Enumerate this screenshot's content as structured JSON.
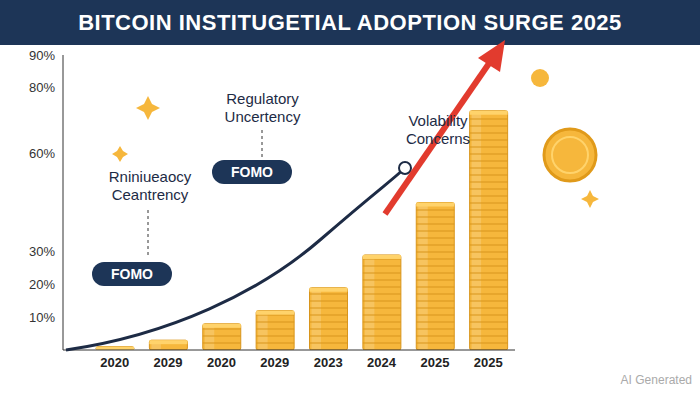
{
  "chart_data": {
    "type": "bar",
    "title": "BITCOIN INSTITUGETIAL ADOPTION SURGE 2025",
    "categories": [
      "2020",
      "2029",
      "2020",
      "2029",
      "2023",
      "2024",
      "2025",
      "2025"
    ],
    "values": [
      1,
      3,
      8,
      12,
      19,
      29,
      45,
      73
    ],
    "color": "#f6b73c",
    "ylim": [
      0,
      90
    ],
    "yticks": [
      {
        "value": 10,
        "label": "10%"
      },
      {
        "value": 20,
        "label": "20%"
      },
      {
        "value": 30,
        "label": "30%"
      },
      {
        "value": 60,
        "label": "60%"
      },
      {
        "value": 80,
        "label": "80%"
      },
      {
        "value": 90,
        "label": "90%"
      }
    ],
    "grid": false,
    "annotations": [
      "Rniniueaocy Ceantrency",
      "FOMO",
      "Regulatory Uncertency",
      "FOMO",
      "Volability Concerns"
    ],
    "watermark": "AI Generated"
  }
}
